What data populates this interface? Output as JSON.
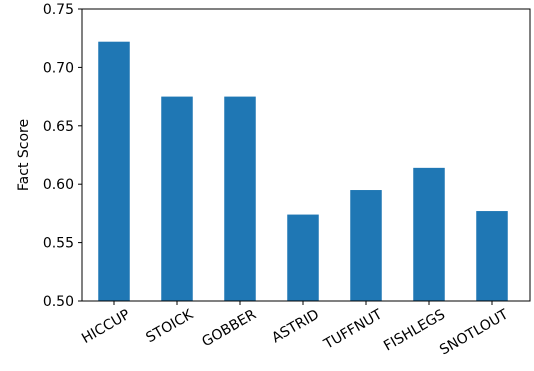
{
  "chart_data": {
    "type": "bar",
    "title": "",
    "xlabel": "",
    "ylabel": "Fact Score",
    "categories": [
      "HICCUP",
      "STOICK",
      "GOBBER",
      "ASTRID",
      "TUFFNUT",
      "FISHLEGS",
      "SNOTLOUT"
    ],
    "values": [
      0.722,
      0.675,
      0.675,
      0.574,
      0.595,
      0.614,
      0.577
    ],
    "ylim": [
      0.5,
      0.75
    ],
    "yticks": [
      "0.50",
      "0.55",
      "0.60",
      "0.65",
      "0.70",
      "0.75"
    ],
    "bar_color": "#1f77b4",
    "grid": false,
    "legend": "none"
  }
}
